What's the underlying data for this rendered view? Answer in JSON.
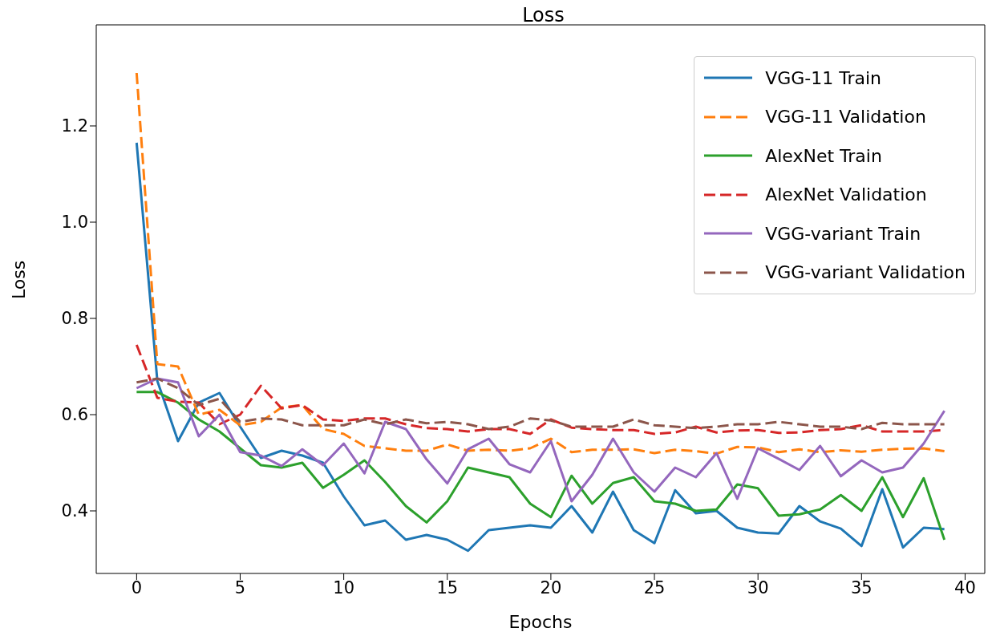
{
  "chart_data": {
    "type": "line",
    "title": "Loss",
    "xlabel": "Epochs",
    "ylabel": "Loss",
    "legend": "top right",
    "marker": "none",
    "x": [
      0,
      1,
      2,
      3,
      4,
      5,
      6,
      7,
      8,
      9,
      10,
      11,
      12,
      13,
      14,
      15,
      16,
      17,
      18,
      19,
      20,
      21,
      22,
      23,
      24,
      25,
      26,
      27,
      28,
      29,
      30,
      31,
      32,
      33,
      34,
      35,
      36,
      37,
      38,
      39
    ],
    "xlim": [
      -1.95,
      40.95
    ],
    "xticks": [
      0,
      5,
      10,
      15,
      20,
      25,
      30,
      35,
      40
    ],
    "ylim": [
      0.27,
      1.41
    ],
    "yticks": [
      0.4,
      0.6,
      0.8,
      {
        "value": 1,
        "label": "1.0"
      },
      1.2
    ],
    "series": [
      {
        "name": "VGG-11 Train",
        "color": "#1f77b4",
        "line_style": "solid",
        "values": [
          1.165,
          0.67,
          0.545,
          0.625,
          0.645,
          0.575,
          0.51,
          0.525,
          0.515,
          0.5,
          0.43,
          0.37,
          0.38,
          0.34,
          0.35,
          0.34,
          0.317,
          0.36,
          0.365,
          0.37,
          0.365,
          0.41,
          0.355,
          0.44,
          0.36,
          0.333,
          0.443,
          0.395,
          0.4,
          0.365,
          0.355,
          0.353,
          0.41,
          0.378,
          0.363,
          0.327,
          0.445,
          0.324,
          0.365,
          0.362
        ]
      },
      {
        "name": "VGG-11 Validation",
        "color": "#ff7f0e",
        "line_style": "dashed",
        "values": [
          1.31,
          0.705,
          0.7,
          0.6,
          0.61,
          0.578,
          0.585,
          0.615,
          0.62,
          0.57,
          0.56,
          0.535,
          0.53,
          0.525,
          0.525,
          0.538,
          0.525,
          0.527,
          0.525,
          0.53,
          0.55,
          0.522,
          0.527,
          0.527,
          0.528,
          0.52,
          0.527,
          0.524,
          0.519,
          0.533,
          0.532,
          0.522,
          0.528,
          0.522,
          0.526,
          0.523,
          0.527,
          0.529,
          0.53,
          0.524
        ]
      },
      {
        "name": "AlexNet Train",
        "color": "#2ca02c",
        "line_style": "solid",
        "values": [
          0.647,
          0.647,
          0.625,
          0.59,
          0.565,
          0.53,
          0.495,
          0.49,
          0.5,
          0.448,
          0.475,
          0.505,
          0.46,
          0.41,
          0.376,
          0.42,
          0.49,
          0.48,
          0.47,
          0.415,
          0.387,
          0.473,
          0.415,
          0.458,
          0.47,
          0.42,
          0.415,
          0.4,
          0.403,
          0.455,
          0.447,
          0.39,
          0.393,
          0.403,
          0.433,
          0.4,
          0.47,
          0.387,
          0.468,
          0.34
        ]
      },
      {
        "name": "AlexNet Validation",
        "color": "#d62728",
        "line_style": "dashed",
        "values": [
          0.745,
          0.635,
          0.627,
          0.625,
          0.58,
          0.6,
          0.66,
          0.613,
          0.62,
          0.59,
          0.587,
          0.592,
          0.592,
          0.58,
          0.572,
          0.57,
          0.565,
          0.57,
          0.57,
          0.56,
          0.59,
          0.573,
          0.57,
          0.568,
          0.568,
          0.56,
          0.563,
          0.575,
          0.563,
          0.567,
          0.568,
          0.562,
          0.563,
          0.568,
          0.57,
          0.578,
          0.565,
          0.565,
          0.565,
          0.568
        ]
      },
      {
        "name": "VGG-variant Train",
        "color": "#9467bd",
        "line_style": "solid",
        "values": [
          0.655,
          0.675,
          0.667,
          0.555,
          0.6,
          0.522,
          0.515,
          0.493,
          0.528,
          0.495,
          0.54,
          0.478,
          0.585,
          0.57,
          0.507,
          0.457,
          0.528,
          0.55,
          0.497,
          0.48,
          0.545,
          0.42,
          0.475,
          0.55,
          0.48,
          0.44,
          0.49,
          0.47,
          0.52,
          0.425,
          0.53,
          0.508,
          0.485,
          0.535,
          0.472,
          0.505,
          0.48,
          0.49,
          0.54,
          0.608
        ]
      },
      {
        "name": "VGG-variant Validation",
        "color": "#8c564b",
        "line_style": "dashed",
        "values": [
          0.667,
          0.675,
          0.655,
          0.62,
          0.633,
          0.585,
          0.592,
          0.59,
          0.578,
          0.578,
          0.578,
          0.59,
          0.58,
          0.59,
          0.582,
          0.585,
          0.58,
          0.57,
          0.575,
          0.592,
          0.588,
          0.575,
          0.575,
          0.575,
          0.59,
          0.578,
          0.575,
          0.572,
          0.575,
          0.58,
          0.58,
          0.585,
          0.58,
          0.575,
          0.575,
          0.57,
          0.583,
          0.58,
          0.58,
          0.58
        ]
      }
    ]
  }
}
